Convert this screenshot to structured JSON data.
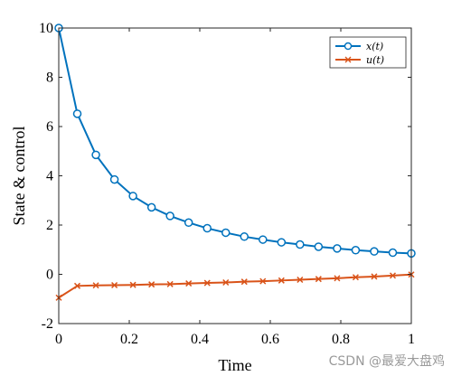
{
  "chart_data": {
    "type": "line",
    "xlabel": "Time",
    "ylabel": "State & control",
    "xlim": [
      0,
      1
    ],
    "ylim": [
      -2,
      10
    ],
    "x_ticks": [
      "0",
      "0.2",
      "0.4",
      "0.6",
      "0.8",
      "1"
    ],
    "y_ticks": [
      "-2",
      "0",
      "2",
      "4",
      "6",
      "8",
      "10"
    ],
    "x_tick_values": [
      0,
      0.2,
      0.4,
      0.6,
      0.8,
      1
    ],
    "y_tick_values": [
      -2,
      0,
      2,
      4,
      6,
      8,
      10
    ],
    "grid": false,
    "legend_position": "top-right",
    "x": [
      0,
      0.0526,
      0.1053,
      0.1579,
      0.2105,
      0.2632,
      0.3158,
      0.3684,
      0.4211,
      0.4737,
      0.5263,
      0.5789,
      0.6316,
      0.6842,
      0.7368,
      0.7895,
      0.8421,
      0.8947,
      0.9474,
      1.0
    ],
    "series": [
      {
        "name": "x(t)",
        "color": "#0072BD",
        "marker": "circle",
        "values": [
          10.0,
          6.52,
          4.85,
          3.85,
          3.18,
          2.72,
          2.37,
          2.1,
          1.87,
          1.69,
          1.53,
          1.41,
          1.3,
          1.21,
          1.12,
          1.05,
          0.98,
          0.93,
          0.88,
          0.85
        ]
      },
      {
        "name": "u(t)",
        "color": "#D95319",
        "marker": "x",
        "values": [
          -0.95,
          -0.47,
          -0.45,
          -0.44,
          -0.43,
          -0.41,
          -0.4,
          -0.37,
          -0.35,
          -0.33,
          -0.3,
          -0.28,
          -0.25,
          -0.22,
          -0.19,
          -0.16,
          -0.12,
          -0.09,
          -0.05,
          -0.01
        ]
      }
    ]
  },
  "watermark": "CSDN @最爱大盘鸡"
}
